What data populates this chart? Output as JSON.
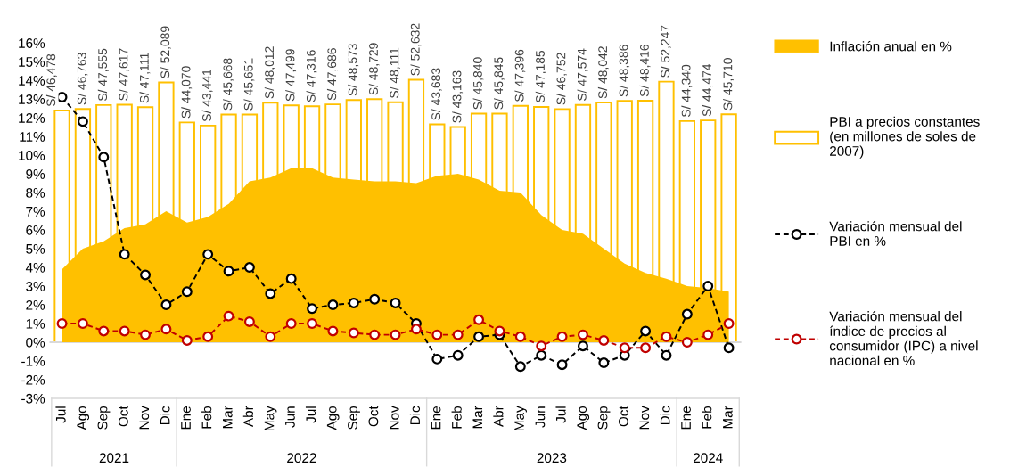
{
  "chart_data": {
    "type": "bar",
    "categories": [
      "Jul",
      "Ago",
      "Sep",
      "Oct",
      "Nov",
      "Dic",
      "Ene",
      "Feb",
      "Mar",
      "Abr",
      "May",
      "Jun",
      "Jul",
      "Ago",
      "Sep",
      "Oct",
      "Nov",
      "Dic",
      "Ene",
      "Feb",
      "Mar",
      "Abr",
      "May",
      "Jun",
      "Jul",
      "Ago",
      "Sep",
      "Oct",
      "Nov",
      "Dic",
      "Ene",
      "Feb",
      "Mar"
    ],
    "series": [
      {
        "name": "Inflación anual en %",
        "type": "area",
        "color": "#ffc000",
        "values": [
          3.9,
          5.0,
          5.4,
          6.1,
          6.3,
          7.0,
          6.4,
          6.7,
          7.4,
          8.6,
          8.8,
          9.3,
          9.3,
          8.8,
          8.7,
          8.6,
          8.6,
          8.5,
          8.9,
          9.0,
          8.7,
          8.1,
          8.0,
          6.8,
          6.0,
          5.8,
          5.0,
          4.2,
          3.7,
          3.4,
          3.0,
          2.9,
          2.7
        ]
      },
      {
        "name": "PBI a precios constantes (en millones de soles de 2007)",
        "axis": "y2",
        "color": "#ffc000",
        "values": [
          46478,
          46763,
          47555,
          47617,
          47111,
          52089,
          44070,
          43441,
          45668,
          45651,
          48012,
          47499,
          47316,
          47686,
          48573,
          48729,
          48111,
          52632,
          43683,
          43163,
          45840,
          45845,
          47396,
          47185,
          46752,
          47574,
          48042,
          48386,
          48416,
          52247,
          44340,
          44474,
          45710
        ],
        "value_labels": [
          "S/ 46,478",
          "S/ 46,763",
          "S/ 47,555",
          "S/ 47,617",
          "S/ 47,111",
          "S/ 52,089",
          "S/ 44,070",
          "S/ 43,441",
          "S/ 45,668",
          "S/ 45,651",
          "S/ 48,012",
          "S/ 47,499",
          "S/ 47,316",
          "S/ 47,686",
          "S/ 48,573",
          "S/ 48,729",
          "S/ 48,111",
          "S/ 52,632",
          "S/ 43,683",
          "S/ 43,163",
          "S/ 45,840",
          "S/ 45,845",
          "S/ 47,396",
          "S/ 47,185",
          "S/ 46,752",
          "S/ 47,574",
          "S/ 48,042",
          "S/ 48,386",
          "S/ 48,416",
          "S/ 52,247",
          "S/ 44,340",
          "S/ 44,474",
          "S/ 45,710"
        ]
      },
      {
        "name": "Variación mensual del PBI en %",
        "type": "line",
        "color": "#000000",
        "marker": "circle",
        "line_style": "dashed",
        "values": [
          13.1,
          11.8,
          9.9,
          4.7,
          3.6,
          2.0,
          2.7,
          4.7,
          3.8,
          4.0,
          2.6,
          3.4,
          1.8,
          2.0,
          2.1,
          2.3,
          2.1,
          1.0,
          -0.9,
          -0.7,
          0.3,
          0.4,
          -1.3,
          -0.7,
          -1.2,
          -0.2,
          -1.1,
          -0.7,
          0.6,
          -0.7,
          1.5,
          3.0,
          -0.3
        ]
      },
      {
        "name": "Variación mensual del índice de precios al consumidor (IPC) a nivel nacional en %",
        "type": "line",
        "color": "#c00000",
        "marker": "circle",
        "line_style": "dashed",
        "values": [
          1.0,
          1.0,
          0.6,
          0.6,
          0.4,
          0.7,
          0.1,
          0.3,
          1.4,
          1.1,
          0.3,
          1.0,
          1.0,
          0.6,
          0.5,
          0.4,
          0.4,
          0.7,
          0.4,
          0.4,
          1.2,
          0.6,
          0.3,
          -0.2,
          0.3,
          0.4,
          0.1,
          -0.3,
          -0.3,
          0.3,
          0.0,
          0.4,
          1.0
        ]
      }
    ],
    "ylim": [
      -3,
      16
    ],
    "yticks": [
      {
        "value": -3,
        "label": "-3%"
      },
      {
        "value": -2,
        "label": "-2%"
      },
      {
        "value": -1,
        "label": "-1%"
      },
      {
        "value": 0,
        "label": "0%"
      },
      {
        "value": 1,
        "label": "1%"
      },
      {
        "value": 2,
        "label": "2%"
      },
      {
        "value": 3,
        "label": "3%"
      },
      {
        "value": 4,
        "label": "4%"
      },
      {
        "value": 5,
        "label": "5%"
      },
      {
        "value": 6,
        "label": "6%"
      },
      {
        "value": 7,
        "label": "7%"
      },
      {
        "value": 8,
        "label": "8%"
      },
      {
        "value": 9,
        "label": "9%"
      },
      {
        "value": 10,
        "label": "10%"
      },
      {
        "value": 11,
        "label": "11%"
      },
      {
        "value": 12,
        "label": "12%"
      },
      {
        "value": 13,
        "label": "13%"
      },
      {
        "value": 14,
        "label": "14%"
      },
      {
        "value": 15,
        "label": "15%"
      },
      {
        "value": 16,
        "label": "16%"
      }
    ],
    "ref_lines": [
      {
        "axis": "y",
        "value": 0,
        "color": "#d9d9d9"
      }
    ],
    "annotations": [
      "2021",
      "2022",
      "2023",
      "2024"
    ],
    "grid": false,
    "legend": "right"
  }
}
